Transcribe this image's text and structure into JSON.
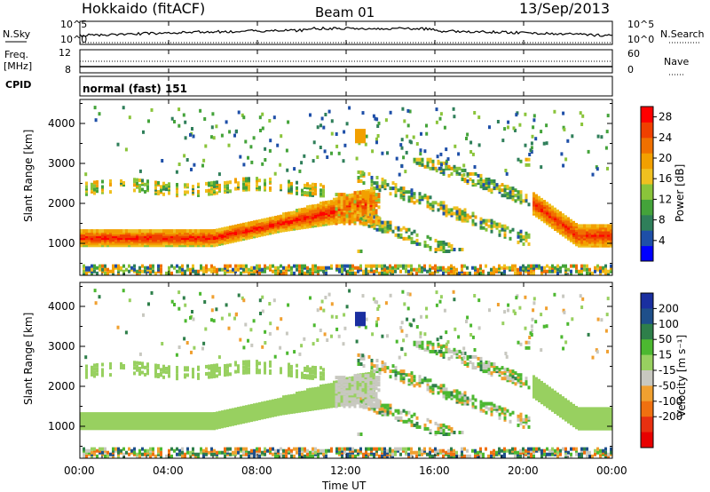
{
  "header": {
    "title": "Hokkaido (fitACF)",
    "beam": "Beam 01",
    "date": "13/Sep/2013"
  },
  "noise_panel": {
    "left_label": "N.Sky",
    "right_label": "N.Search",
    "left_ticks": [
      "10^5",
      "10^0"
    ],
    "right_ticks": [
      "10^5",
      "10^0"
    ]
  },
  "freq_panel": {
    "left_label_1": "Freq.",
    "left_label_2": "[MHz]",
    "right_label": "Nave",
    "left_ticks": [
      "12",
      "8"
    ],
    "right_ticks": [
      "60",
      "0"
    ]
  },
  "cpid_panel": {
    "label": "CPID",
    "text": "normal (fast) 151"
  },
  "power_panel": {
    "ylabel": "Slant Range [km]",
    "colorbar_label": "Power [dB]",
    "y_ticks": [
      "1000",
      "2000",
      "3000",
      "4000"
    ],
    "colorbar_ticks": [
      "4",
      "8",
      "12",
      "16",
      "20",
      "24",
      "28"
    ],
    "colorbar_colors": [
      "#0000ff",
      "#1e4fa8",
      "#2f7f5a",
      "#44a33a",
      "#8ac43a",
      "#f0c020",
      "#f2a000",
      "#f07000",
      "#f04000",
      "#ff0000"
    ]
  },
  "velocity_panel": {
    "ylabel": "Slant Range [km]",
    "colorbar_label": "Velocity [m s⁻¹]",
    "y_ticks": [
      "1000",
      "2000",
      "3000",
      "4000"
    ],
    "colorbar_ticks": [
      "200",
      "100",
      "50",
      "15",
      "-15",
      "-50",
      "-100",
      "-200"
    ],
    "colorbar_colors": [
      "#1a2fa0",
      "#1e4f8a",
      "#2e7f4a",
      "#4cb830",
      "#98d060",
      "#c8c8c0",
      "#f0a030",
      "#f07010",
      "#e83010",
      "#e80000"
    ]
  },
  "x_axis": {
    "label": "Time UT",
    "ticks": [
      "00:00",
      "04:00",
      "08:00",
      "12:00",
      "16:00",
      "20:00",
      "00:00"
    ]
  },
  "chart_data": [
    {
      "type": "heatmap",
      "title": "Hokkaido (fitACF) Beam 01 13/Sep/2013",
      "quantity": "Power [dB]",
      "xlabel": "Time UT",
      "ylabel": "Slant Range [km]",
      "xlim_hours": [
        0,
        24
      ],
      "ylim_km": [
        200,
        4600
      ],
      "clim": [
        0,
        30
      ],
      "features": [
        {
          "name": "main band",
          "x_hours": [
            0,
            13
          ],
          "range_km_start": [
            1100,
            2100
          ],
          "power_db": 28
        },
        {
          "name": "late band",
          "x_hours": [
            20.5,
            24
          ],
          "range_km_start": [
            2000,
            1200
          ],
          "power_db": 26
        },
        {
          "name": "upper band",
          "x_hours": [
            0,
            11
          ],
          "range_km": 2400,
          "power_db": 14
        },
        {
          "name": "afternoon echoes",
          "x_hours": [
            12.5,
            20
          ],
          "range_km": [
            900,
            3100
          ],
          "power_db": 12
        }
      ]
    },
    {
      "type": "heatmap",
      "quantity": "Velocity [m s⁻¹]",
      "xlabel": "Time UT",
      "ylabel": "Slant Range [km]",
      "xlim_hours": [
        0,
        24
      ],
      "ylim_km": [
        200,
        4600
      ],
      "clim": [
        -200,
        200
      ],
      "features": [
        {
          "name": "main band",
          "x_hours": [
            0,
            13
          ],
          "velocity": 0
        },
        {
          "name": "negative patches",
          "x_hours": [
            13,
            20
          ],
          "velocity": -60
        },
        {
          "name": "positive patches",
          "x_hours": [
            15,
            20
          ],
          "velocity": 40
        },
        {
          "name": "positive patch",
          "x_hours": [
            12.5,
            12.7
          ],
          "range_km": 3700,
          "velocity": 220
        }
      ]
    }
  ]
}
